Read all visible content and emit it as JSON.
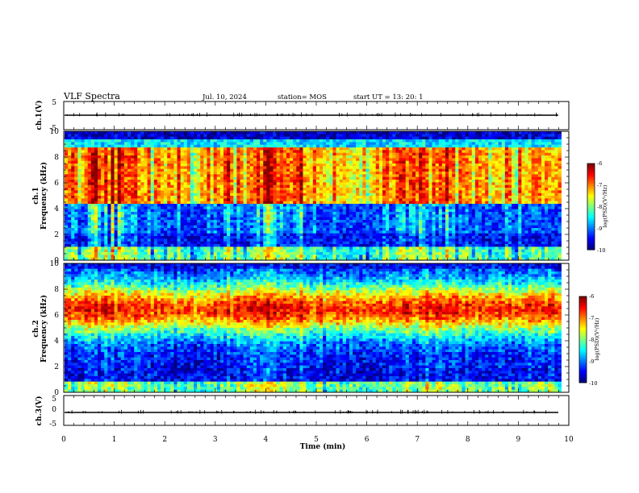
{
  "header": {
    "title": "VLF Spectra",
    "date": "Jul. 10, 2024",
    "station": "station= MOS",
    "start_ut": "start UT =  13: 20: 1"
  },
  "chart_data": [
    {
      "type": "line",
      "name": "ch1-waveform",
      "ylabel": "ch.1(V)",
      "ylim": [
        -5,
        5
      ],
      "yticks": [
        "5",
        "-5"
      ],
      "xlim": [
        0,
        10
      ],
      "baseline_value": 0
    },
    {
      "type": "heatmap",
      "name": "ch1-spectrogram",
      "ylabel": [
        "ch.1",
        "Frequency (kHz)"
      ],
      "ylim": [
        0,
        10
      ],
      "yticks": [
        0,
        2,
        4,
        6,
        8,
        10
      ],
      "xlim": [
        0,
        9.85
      ],
      "colorbar": {
        "label": "log(PSD)(V²/Hz)",
        "range": [
          -10,
          -6
        ],
        "ticks": [
          "-6",
          "-7",
          "-8",
          "-9",
          "-10"
        ]
      }
    },
    {
      "type": "heatmap",
      "name": "ch2-spectrogram",
      "ylabel": [
        "ch.2",
        "Frequency (kHz)"
      ],
      "ylim": [
        0,
        10
      ],
      "yticks": [
        0,
        2,
        4,
        6,
        8,
        10
      ],
      "xlim": [
        0,
        9.85
      ],
      "colorbar": {
        "label": "log(PSD)(V²/Hz)",
        "range": [
          -10,
          -6
        ],
        "ticks": [
          "-6",
          "-7",
          "-8",
          "-9",
          "-10"
        ]
      }
    },
    {
      "type": "line",
      "name": "ch3-waveform",
      "ylabel": "ch.3(V)",
      "ylim": [
        -5,
        5
      ],
      "yticks": [
        "5",
        "0",
        "-5"
      ],
      "xlim": [
        0,
        10
      ],
      "baseline_value": 0
    }
  ],
  "time_axis": {
    "xlabel": "Time (min)",
    "ticks": [
      "0",
      "1",
      "2",
      "3",
      "4",
      "5",
      "6",
      "7",
      "8",
      "9",
      "10"
    ]
  }
}
